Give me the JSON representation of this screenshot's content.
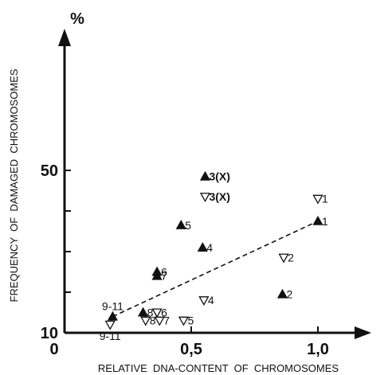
{
  "chart_data": {
    "type": "scatter",
    "title": "",
    "xlabel": "RELATIVE  DNA-CONTENT  OF  CHROMOSOMES",
    "ylabel": "FREQUENCY  OF  DAMAGED  CHROMOSOMES",
    "y_unit": "%",
    "origin_label": "0",
    "xlim": [
      0,
      1.2
    ],
    "ylim": [
      0,
      60
    ],
    "x_ticks": [
      {
        "value": 0.5,
        "label": "0,5"
      },
      {
        "value": 1.0,
        "label": "1,0"
      }
    ],
    "y_ticks": [
      {
        "value": 10,
        "label": "10"
      },
      {
        "value": 20,
        "label": ""
      },
      {
        "value": 30,
        "label": ""
      },
      {
        "value": 40,
        "label": ""
      },
      {
        "value": 50,
        "label": "50"
      }
    ],
    "grid": false,
    "legend": "none",
    "series": [
      {
        "marker": "filled-triangle-up",
        "points": [
          {
            "label": "1",
            "x": 1.0,
            "y": 37.5
          },
          {
            "label": "2",
            "x": 0.86,
            "y": 19.5
          },
          {
            "label": "3(X)",
            "x": 0.555,
            "y": 48.5
          },
          {
            "label": "4",
            "x": 0.545,
            "y": 31
          },
          {
            "label": "5",
            "x": 0.46,
            "y": 36.5
          },
          {
            "label": "6",
            "x": 0.365,
            "y": 25
          },
          {
            "label": "7",
            "x": 0.365,
            "y": 24
          },
          {
            "label": "8",
            "x": 0.31,
            "y": 15
          },
          {
            "label": "9-11",
            "x": 0.19,
            "y": 14
          }
        ]
      },
      {
        "marker": "open-triangle-down",
        "points": [
          {
            "label": "1",
            "x": 1.0,
            "y": 43
          },
          {
            "label": "2",
            "x": 0.865,
            "y": 28.5
          },
          {
            "label": "3(X)",
            "x": 0.555,
            "y": 43.5
          },
          {
            "label": "4",
            "x": 0.55,
            "y": 18
          },
          {
            "label": "5",
            "x": 0.47,
            "y": 13
          },
          {
            "label": "6",
            "x": 0.365,
            "y": 15
          },
          {
            "label": "7",
            "x": 0.375,
            "y": 13
          },
          {
            "label": "8",
            "x": 0.32,
            "y": 13
          },
          {
            "label": "9-11",
            "x": 0.18,
            "y": 12
          }
        ]
      }
    ],
    "trend_line": {
      "style": "dashed",
      "x": [
        0.19,
        1.0
      ],
      "y": [
        14,
        37.5
      ]
    }
  }
}
